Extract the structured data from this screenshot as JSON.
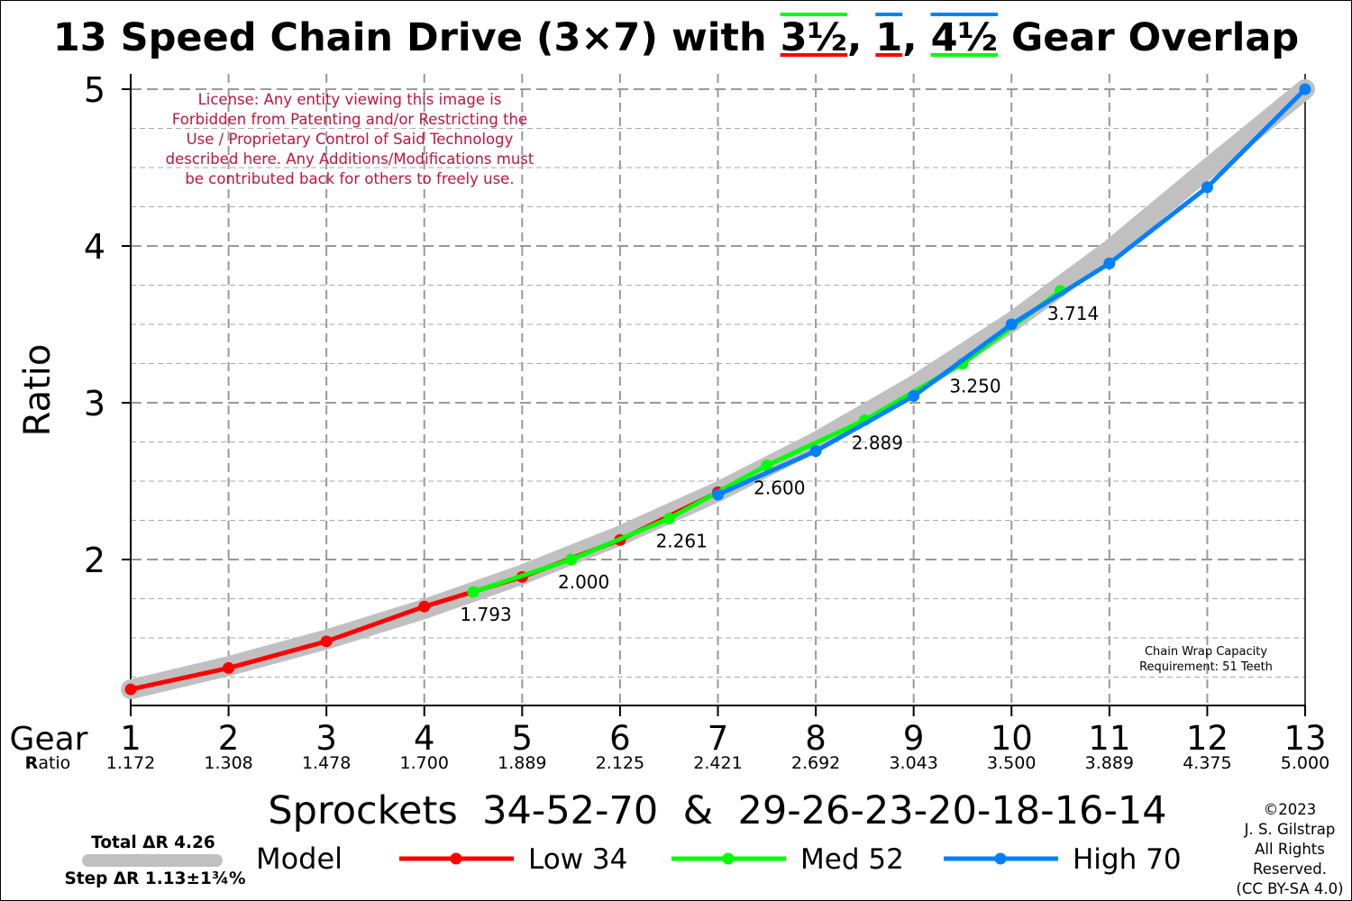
{
  "title": {
    "part1": "13 Speed Chain Drive (3×7) with ",
    "ov1": "3½",
    "sep1": ", ",
    "ov2": "1",
    "sep2": ", ",
    "ov3": "4½",
    "part2": " Gear Overlap"
  },
  "license": [
    "License: Any entity viewing this image is",
    "Forbidden from Patenting and/or Restricting the",
    "Use / Proprietary Control of Said Technology",
    "described here. Any Additions/Modifications must",
    "be contributed back for others to freely use."
  ],
  "chain_wrap": [
    "Chain Wrap Capacity",
    "Requirement: 51 Teeth"
  ],
  "gear_row_label": "Gear",
  "ratio_row_label": {
    "first": "R",
    "rest": "atio"
  },
  "sprockets_text": "Sprockets  34-52-70  &  29-26-23-20-18-16-14",
  "totals": {
    "total": "Total ΔR 4.26",
    "step": "Step ΔR 1.13±1¾%"
  },
  "copyright": [
    "©2023",
    "J. S. Gilstrap",
    "All Rights",
    "Reserved.",
    "(CC BY-SA 4.0)"
  ],
  "colors": {
    "low": "#ff0000",
    "med": "#00ff00",
    "high": "#0080ff",
    "model": "#c0c0c0",
    "license": "#c0143c"
  },
  "chart_data": {
    "type": "line",
    "title": "13 Speed Chain Drive (3×7) with 3½, 1, 4½ Gear Overlap",
    "xlabel": "Gear",
    "ylabel": "Ratio",
    "xlim": [
      1,
      13
    ],
    "ylim": [
      1,
      5
    ],
    "y_ticks": [
      2,
      3,
      4,
      5
    ],
    "x_ticks": [
      1,
      2,
      3,
      4,
      5,
      6,
      7,
      8,
      9,
      10,
      11,
      12,
      13
    ],
    "gear_ratios": [
      "1.172",
      "1.308",
      "1.478",
      "1.700",
      "1.889",
      "2.125",
      "2.421",
      "2.692",
      "3.043",
      "3.500",
      "3.889",
      "4.375",
      "5.000"
    ],
    "grid": true,
    "legend_title": "Model",
    "legend_position": "bottom",
    "series": [
      {
        "name": "Model",
        "color": "#c0c0c0",
        "x": [
          1,
          2,
          3,
          4,
          5,
          6,
          7,
          8,
          9,
          10,
          11,
          12,
          13
        ],
        "y": [
          1.172,
          1.32,
          1.49,
          1.684,
          1.904,
          2.152,
          2.433,
          2.75,
          3.109,
          3.514,
          3.973,
          4.491,
          5.0
        ]
      },
      {
        "name": "Low 34",
        "color": "#ff0000",
        "x": [
          1,
          2,
          3,
          4,
          5,
          6,
          7
        ],
        "y": [
          1.172,
          1.308,
          1.478,
          1.7,
          1.889,
          2.125,
          2.429
        ]
      },
      {
        "name": "Med 52",
        "color": "#00ff00",
        "x": [
          4.5,
          5.5,
          6.5,
          7.5,
          8.5,
          9.5,
          10.5
        ],
        "y": [
          1.793,
          2.0,
          2.261,
          2.6,
          2.889,
          3.25,
          3.714
        ]
      },
      {
        "name": "High 70",
        "color": "#0080ff",
        "x": [
          7,
          8,
          9,
          10,
          11,
          12,
          13
        ],
        "y": [
          2.414,
          2.692,
          3.043,
          3.5,
          3.889,
          4.375,
          5.0
        ]
      }
    ],
    "annotations": [
      "1.793",
      "2.000",
      "2.261",
      "2.600",
      "2.889",
      "3.250",
      "3.714"
    ],
    "annotation_x": [
      4.5,
      5.5,
      6.5,
      7.5,
      8.5,
      9.5,
      10.5
    ],
    "annotation_y": [
      1.793,
      2.0,
      2.261,
      2.6,
      2.889,
      3.25,
      3.714
    ]
  }
}
